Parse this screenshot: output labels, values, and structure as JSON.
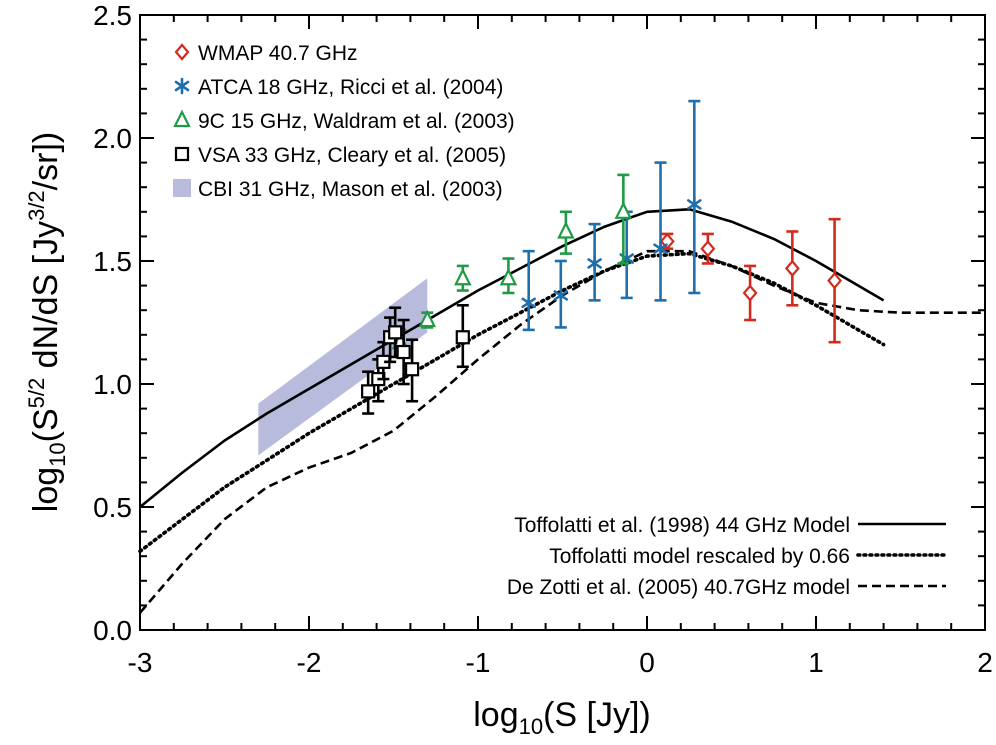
{
  "chart_data": {
    "type": "scatter",
    "xlabel": "log10(S [Jy])",
    "ylabel": "log10(S5/2 dN/dS [Jy3/2/sr])",
    "xlim": [
      -3,
      2
    ],
    "ylim": [
      0.0,
      2.5
    ],
    "x_ticks": [
      "-3",
      "-2",
      "-1",
      "0",
      "1",
      "2"
    ],
    "y_ticks": [
      "0.0",
      "0.5",
      "1.0",
      "1.5",
      "2.0",
      "2.5"
    ],
    "grid": false,
    "legend_data": [
      {
        "label": "WMAP 40.7 GHz",
        "marker": "diamond",
        "color": "#d42a1e"
      },
      {
        "label": "ATCA 18 GHz, Ricci et al. (2004)",
        "marker": "asterisk",
        "color": "#1f6fad"
      },
      {
        "label": "9C 15 GHz, Waldram et al. (2003)",
        "marker": "triangle",
        "color": "#1f9a45"
      },
      {
        "label": "VSA 33 GHz, Cleary et al. (2005)",
        "marker": "square",
        "color": "#000000"
      },
      {
        "label": "CBI 31 GHz, Mason et al. (2003)",
        "marker": "band",
        "color": "#b8bbdc"
      }
    ],
    "legend_models": [
      {
        "label": "Toffolatti et al. (1998) 44 GHz Model",
        "style": "solid"
      },
      {
        "label": "Toffolatti model rescaled by 0.66",
        "style": "dotted"
      },
      {
        "label": "De Zotti et al. (2005) 40.7GHz model",
        "style": "dashed"
      }
    ],
    "series": [
      {
        "name": "WMAP 40.7 GHz",
        "marker": "diamond",
        "color": "#d42a1e",
        "points": [
          {
            "x": 0.12,
            "y": 1.58,
            "lo": 1.55,
            "hi": 1.61
          },
          {
            "x": 0.36,
            "y": 1.55,
            "lo": 1.49,
            "hi": 1.61
          },
          {
            "x": 0.61,
            "y": 1.37,
            "lo": 1.26,
            "hi": 1.48
          },
          {
            "x": 0.86,
            "y": 1.47,
            "lo": 1.32,
            "hi": 1.62
          },
          {
            "x": 1.11,
            "y": 1.42,
            "lo": 1.17,
            "hi": 1.67
          }
        ]
      },
      {
        "name": "ATCA 18 GHz, Ricci et al. (2004)",
        "marker": "asterisk",
        "color": "#1f6fad",
        "points": [
          {
            "x": -0.7,
            "y": 1.33,
            "lo": 1.22,
            "hi": 1.54
          },
          {
            "x": -0.51,
            "y": 1.36,
            "lo": 1.23,
            "hi": 1.5
          },
          {
            "x": -0.31,
            "y": 1.49,
            "lo": 1.34,
            "hi": 1.65
          },
          {
            "x": -0.12,
            "y": 1.51,
            "lo": 1.35,
            "hi": 1.7
          },
          {
            "x": 0.08,
            "y": 1.55,
            "lo": 1.34,
            "hi": 1.9
          },
          {
            "x": 0.28,
            "y": 1.73,
            "lo": 1.37,
            "hi": 2.15
          }
        ]
      },
      {
        "name": "9C 15 GHz, Waldram et al. (2003)",
        "marker": "triangle",
        "color": "#1f9a45",
        "points": [
          {
            "x": -1.46,
            "y": 1.17,
            "lo": 1.11,
            "hi": 1.22
          },
          {
            "x": -1.3,
            "y": 1.26,
            "lo": 1.23,
            "hi": 1.29
          },
          {
            "x": -1.09,
            "y": 1.43,
            "lo": 1.38,
            "hi": 1.48
          },
          {
            "x": -0.82,
            "y": 1.43,
            "lo": 1.37,
            "hi": 1.51
          },
          {
            "x": -0.48,
            "y": 1.62,
            "lo": 1.53,
            "hi": 1.7
          },
          {
            "x": -0.14,
            "y": 1.7,
            "lo": 1.49,
            "hi": 1.85
          }
        ]
      },
      {
        "name": "VSA 33 GHz, Cleary et al. (2005)",
        "marker": "square",
        "color": "#000000",
        "points": [
          {
            "x": -1.65,
            "y": 0.97,
            "lo": 0.88,
            "hi": 1.05
          },
          {
            "x": -1.59,
            "y": 1.02,
            "lo": 0.93,
            "hi": 1.1
          },
          {
            "x": -1.56,
            "y": 1.09,
            "lo": 1.02,
            "hi": 1.17
          },
          {
            "x": -1.52,
            "y": 1.19,
            "lo": 1.09,
            "hi": 1.27
          },
          {
            "x": -1.49,
            "y": 1.21,
            "lo": 1.11,
            "hi": 1.31
          },
          {
            "x": -1.44,
            "y": 1.13,
            "lo": 1.0,
            "hi": 1.26
          },
          {
            "x": -1.39,
            "y": 1.06,
            "lo": 0.93,
            "hi": 1.18
          },
          {
            "x": -1.09,
            "y": 1.19,
            "lo": 1.07,
            "hi": 1.32
          }
        ]
      }
    ],
    "band": {
      "name": "CBI 31 GHz, Mason et al. (2003)",
      "color": "#b8bbdc",
      "points": [
        {
          "x": -2.3,
          "lo": 0.71,
          "hi": 0.92
        },
        {
          "x": -1.3,
          "lo": 1.21,
          "hi": 1.43
        }
      ]
    },
    "models": [
      {
        "name": "Toffolatti et al. (1998) 44 GHz Model",
        "style": "solid",
        "x": [
          -3.0,
          -2.75,
          -2.5,
          -2.25,
          -2.0,
          -1.75,
          -1.5,
          -1.25,
          -1.0,
          -0.75,
          -0.5,
          -0.25,
          0.0,
          0.25,
          0.5,
          0.75,
          1.0,
          1.25,
          1.4
        ],
        "y": [
          0.5,
          0.64,
          0.77,
          0.88,
          0.98,
          1.08,
          1.18,
          1.28,
          1.38,
          1.47,
          1.56,
          1.64,
          1.7,
          1.71,
          1.66,
          1.59,
          1.5,
          1.4,
          1.34
        ]
      },
      {
        "name": "Toffolatti model rescaled by 0.66",
        "style": "dotted",
        "x": [
          -3.0,
          -2.75,
          -2.5,
          -2.25,
          -2.0,
          -1.75,
          -1.5,
          -1.25,
          -1.0,
          -0.75,
          -0.5,
          -0.25,
          0.0,
          0.25,
          0.5,
          0.75,
          1.0,
          1.25,
          1.4
        ],
        "y": [
          0.32,
          0.45,
          0.58,
          0.69,
          0.8,
          0.9,
          1.0,
          1.1,
          1.2,
          1.29,
          1.38,
          1.46,
          1.52,
          1.53,
          1.48,
          1.41,
          1.32,
          1.22,
          1.16
        ]
      },
      {
        "name": "De Zotti et al. (2005) 40.7GHz model",
        "style": "dashed",
        "x": [
          -3.0,
          -2.75,
          -2.5,
          -2.25,
          -2.0,
          -1.75,
          -1.5,
          -1.25,
          -1.0,
          -0.75,
          -0.5,
          -0.25,
          0.0,
          0.25,
          0.5,
          0.75,
          1.0,
          1.25,
          1.5,
          1.75,
          2.0
        ],
        "y": [
          0.07,
          0.27,
          0.45,
          0.58,
          0.66,
          0.72,
          0.81,
          0.95,
          1.1,
          1.24,
          1.36,
          1.46,
          1.54,
          1.54,
          1.48,
          1.4,
          1.33,
          1.3,
          1.29,
          1.29,
          1.29
        ]
      }
    ]
  }
}
